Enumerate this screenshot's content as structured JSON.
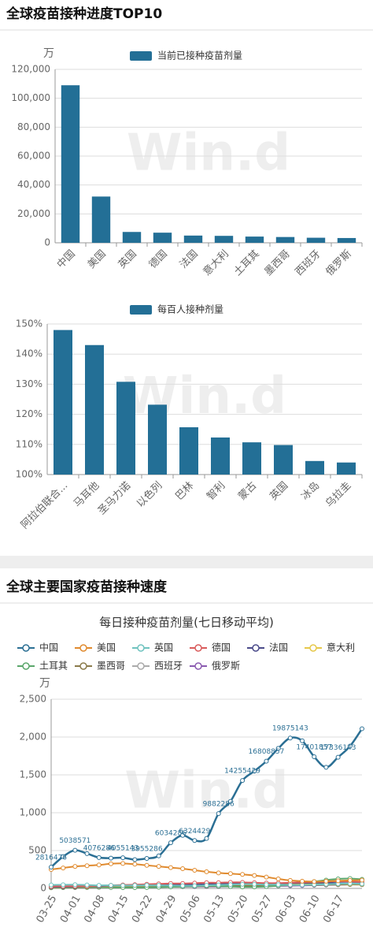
{
  "section_titles": [
    "全球疫苗接种进度TOP10",
    "全球主要国家疫苗接种速度"
  ],
  "watermark": "Win.d",
  "chart_data": [
    {
      "type": "bar",
      "ylabel": "万",
      "categories": [
        "中国",
        "美国",
        "英国",
        "德国",
        "法国",
        "意大利",
        "土耳其",
        "墨西哥",
        "西班牙",
        "俄罗斯"
      ],
      "series": [
        {
          "name": "当前已接种疫苗剂量",
          "color": "#236f96",
          "values": [
            109000,
            32000,
            7500,
            7000,
            5000,
            4800,
            4300,
            4000,
            3500,
            3300
          ]
        }
      ],
      "ylim": [
        0,
        120000
      ],
      "yticks": [
        0,
        {
          "value": 20000,
          "label": "20,000"
        },
        {
          "value": 40000,
          "label": "40,000"
        },
        {
          "value": 60000,
          "label": "60,000"
        },
        {
          "value": 80000,
          "label": "80,000"
        },
        {
          "value": 100000,
          "label": "100,000"
        },
        {
          "value": 120000,
          "label": "120,000"
        }
      ],
      "grid": true
    },
    {
      "type": "bar",
      "categories": [
        "阿拉伯联合...",
        "马耳他",
        "圣马力诺",
        "以色列",
        "巴林",
        "智利",
        "蒙古",
        "英国",
        "冰岛",
        "乌拉圭"
      ],
      "series": [
        {
          "name": "每百人接种剂量",
          "color": "#236f96",
          "values": [
            148,
            143,
            130.8,
            123.2,
            115.7,
            112.3,
            110.7,
            109.8,
            104.5,
            104
          ]
        }
      ],
      "ylim": [
        100,
        150
      ],
      "yticks": [
        {
          "value": 100,
          "label": "100%"
        },
        {
          "value": 110,
          "label": "110%"
        },
        {
          "value": 120,
          "label": "120%"
        },
        {
          "value": 130,
          "label": "130%"
        },
        {
          "value": 140,
          "label": "140%"
        },
        {
          "value": 150,
          "label": "150%"
        }
      ],
      "grid": true
    },
    {
      "type": "line",
      "title": "每日接种疫苗剂量(七日移动平均)",
      "ylabel": "万",
      "categories": [
        "03-25",
        null,
        "04-01",
        null,
        "04-08",
        null,
        "04-15",
        null,
        "04-22",
        null,
        "04-29",
        null,
        "05-06",
        null,
        "05-13",
        null,
        "05-20",
        null,
        "05-27",
        null,
        "06-03",
        null,
        "06-10",
        null,
        "06-17",
        null,
        null
      ],
      "series": [
        {
          "name": "中国",
          "color": "#2b6f94",
          "values": [
            281.6476,
            420,
            503.8571,
            460,
            407.6286,
            400,
            405.5143,
            380,
            395.5286,
            430,
            603.4286,
            700,
            632.4429,
            660,
            988.2286,
            1150,
            1425.5429,
            1550,
            1680.8857,
            1850,
            1987.5143,
            1950,
            1740.1857,
            1600,
            1733.6143,
            1880,
            2110
          ],
          "value_labels": [
            "2816476",
            null,
            "5038571",
            null,
            "4076286",
            null,
            "4055143",
            null,
            "3955286",
            null,
            "6034286",
            null,
            "6324429",
            null,
            "9882286",
            null,
            "14255429",
            null,
            "16808857",
            null,
            "19875143",
            null,
            "17401857",
            null,
            "17336143",
            null,
            null
          ]
        },
        {
          "name": "美国",
          "color": "#e08a2e",
          "values": [
            250,
            270,
            290,
            300,
            310,
            325,
            330,
            320,
            305,
            290,
            275,
            260,
            240,
            220,
            205,
            195,
            185,
            170,
            150,
            125,
            105,
            95,
            90,
            95,
            100,
            105,
            110
          ]
        },
        {
          "name": "英国",
          "color": "#6fc3bf",
          "values": [
            45,
            48,
            50,
            45,
            40,
            40,
            38,
            40,
            42,
            40,
            38,
            35,
            35,
            40,
            45,
            50,
            55,
            55,
            50,
            50,
            45,
            45,
            50,
            55,
            60,
            65,
            60
          ]
        },
        {
          "name": "德国",
          "color": "#d95b5b",
          "values": [
            25,
            28,
            30,
            30,
            35,
            40,
            45,
            50,
            55,
            60,
            65,
            65,
            70,
            75,
            75,
            80,
            80,
            75,
            70,
            70,
            75,
            80,
            85,
            90,
            95,
            90,
            85
          ]
        },
        {
          "name": "法国",
          "color": "#4a4a8a",
          "values": [
            20,
            22,
            25,
            28,
            30,
            35,
            40,
            42,
            45,
            45,
            48,
            50,
            50,
            55,
            60,
            60,
            62,
            65,
            65,
            68,
            70,
            72,
            75,
            75,
            70,
            68,
            65
          ]
        },
        {
          "name": "意大利",
          "color": "#e6c84a",
          "values": [
            18,
            20,
            22,
            25,
            28,
            30,
            35,
            38,
            40,
            42,
            45,
            48,
            50,
            50,
            52,
            55,
            55,
            55,
            58,
            60,
            60,
            62,
            65,
            65,
            62,
            60,
            58
          ]
        },
        {
          "name": "土耳其",
          "color": "#5aa66a",
          "values": [
            10,
            12,
            15,
            15,
            15,
            12,
            10,
            10,
            12,
            15,
            20,
            25,
            30,
            35,
            30,
            25,
            20,
            20,
            25,
            35,
            50,
            70,
            90,
            110,
            125,
            130,
            120
          ]
        },
        {
          "name": "墨西哥",
          "color": "#8a7a4a",
          "values": [
            8,
            10,
            12,
            12,
            14,
            15,
            15,
            16,
            18,
            20,
            22,
            25,
            28,
            30,
            30,
            32,
            35,
            35,
            38,
            40,
            42,
            45,
            45,
            48,
            50,
            52,
            50
          ]
        },
        {
          "name": "西班牙",
          "color": "#aaaaaa",
          "values": [
            15,
            18,
            20,
            22,
            25,
            28,
            30,
            32,
            35,
            38,
            40,
            42,
            45,
            48,
            50,
            52,
            55,
            55,
            55,
            58,
            60,
            62,
            60,
            58,
            55,
            55,
            52
          ]
        },
        {
          "name": "俄罗斯",
          "color": "#8a5ab0",
          "values": [
            10,
            12,
            12,
            14,
            15,
            16,
            18,
            18,
            20,
            20,
            22,
            22,
            24,
            25,
            25,
            26,
            28,
            28,
            30,
            32,
            35,
            38,
            42,
            45,
            50,
            52,
            55
          ]
        }
      ],
      "ylim": [
        0,
        2500
      ],
      "yticks": [
        0,
        500,
        {
          "value": 1000,
          "label": "1,000"
        },
        {
          "value": 1500,
          "label": "1,500"
        },
        {
          "value": 2000,
          "label": "2,000"
        },
        {
          "value": 2500,
          "label": "2,500"
        }
      ],
      "grid": true
    }
  ]
}
